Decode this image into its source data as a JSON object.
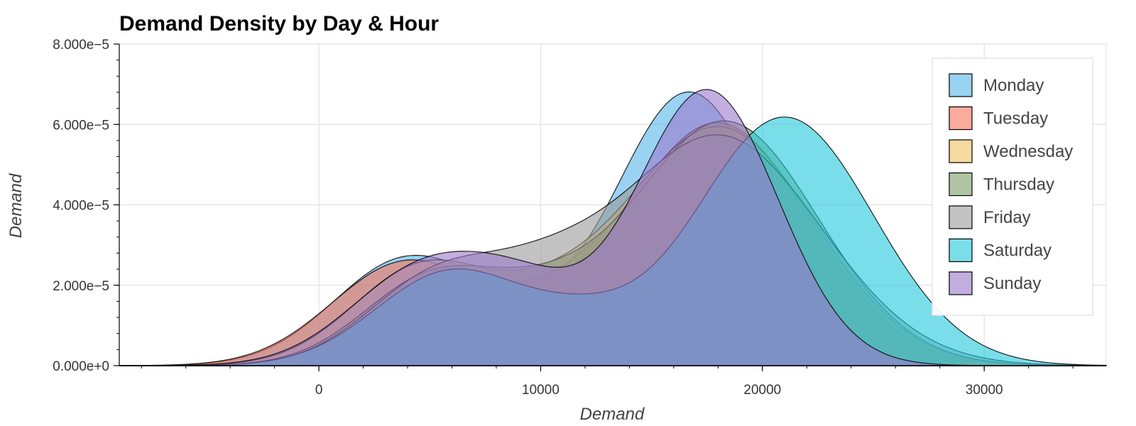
{
  "chart_data": {
    "type": "area",
    "title": "Demand Density by Day & Hour",
    "xlabel": "Demand",
    "ylabel": "Demand",
    "xlim": [
      -9000,
      35500
    ],
    "ylim": [
      0,
      8e-05
    ],
    "x_ticks": [
      {
        "value": 0,
        "label": "0"
      },
      {
        "value": 10000,
        "label": "10000"
      },
      {
        "value": 20000,
        "label": "20000"
      },
      {
        "value": 30000,
        "label": "30000"
      }
    ],
    "y_ticks": [
      {
        "value": 0,
        "label": "0.000e+0"
      },
      {
        "value": 2e-05,
        "label": "2.000e−5"
      },
      {
        "value": 4e-05,
        "label": "4.000e−5"
      },
      {
        "value": 6e-05,
        "label": "6.000e−5"
      },
      {
        "value": 8e-05,
        "label": "8.000e−5"
      }
    ],
    "grid": true,
    "legend_position": "top-right",
    "series": [
      {
        "name": "Monday",
        "color": "#56b4e9",
        "components": [
          {
            "mean": 4000,
            "sd": 3300,
            "weight": 0.22
          },
          {
            "mean": 16700,
            "sd": 3400,
            "weight": 0.58
          },
          {
            "mean": 9000,
            "sd": 2300,
            "weight": 0.04
          }
        ]
      },
      {
        "name": "Tuesday",
        "color": "#f9735a",
        "components": [
          {
            "mean": 4000,
            "sd": 3400,
            "weight": 0.22
          },
          {
            "mean": 18000,
            "sd": 4100,
            "weight": 0.62
          },
          {
            "mean": 10500,
            "sd": 2500,
            "weight": 0.05
          }
        ]
      },
      {
        "name": "Wednesday",
        "color": "#f0c05e",
        "components": [
          {
            "mean": 4800,
            "sd": 3200,
            "weight": 0.2
          },
          {
            "mean": 18000,
            "sd": 4300,
            "weight": 0.64
          },
          {
            "mean": 10500,
            "sd": 2500,
            "weight": 0.05
          }
        ]
      },
      {
        "name": "Thursday",
        "color": "#7c9e68",
        "components": [
          {
            "mean": 5300,
            "sd": 3200,
            "weight": 0.18
          },
          {
            "mean": 18300,
            "sd": 4200,
            "weight": 0.64
          },
          {
            "mean": 10500,
            "sd": 2600,
            "weight": 0.06
          }
        ]
      },
      {
        "name": "Friday",
        "color": "#999999",
        "components": [
          {
            "mean": 5500,
            "sd": 3200,
            "weight": 0.18
          },
          {
            "mean": 18000,
            "sd": 4600,
            "weight": 0.66
          },
          {
            "mean": 10500,
            "sd": 2600,
            "weight": 0.07
          }
        ]
      },
      {
        "name": "Saturday",
        "color": "#22c8dc",
        "components": [
          {
            "mean": 6000,
            "sd": 3400,
            "weight": 0.2
          },
          {
            "mean": 21000,
            "sd": 4000,
            "weight": 0.62
          },
          {
            "mean": 12000,
            "sd": 2500,
            "weight": 0.05
          }
        ]
      },
      {
        "name": "Sunday",
        "color": "#9b78cc",
        "components": [
          {
            "mean": 4800,
            "sd": 3300,
            "weight": 0.2
          },
          {
            "mean": 17500,
            "sd": 3200,
            "weight": 0.55
          },
          {
            "mean": 9500,
            "sd": 2600,
            "weight": 0.09
          }
        ]
      }
    ]
  }
}
